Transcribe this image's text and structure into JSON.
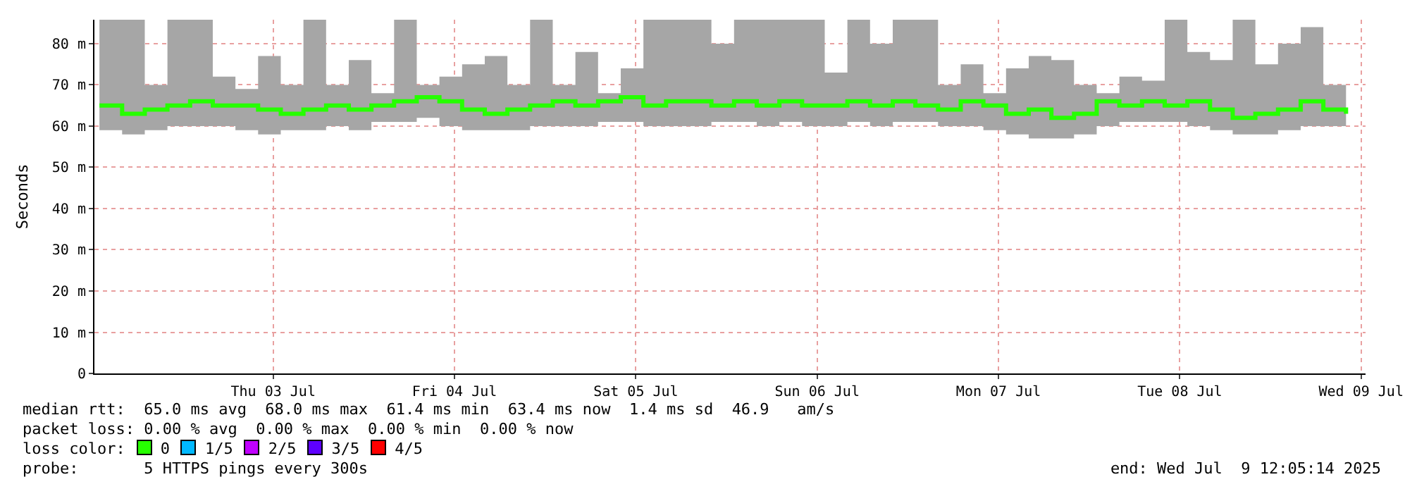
{
  "chart_data": {
    "type": "step",
    "ylabel": "Seconds",
    "x": [
      "2025-07-02T01:00",
      "2025-07-02T04:00",
      "2025-07-02T07:00",
      "2025-07-02T10:00",
      "2025-07-02T13:00",
      "2025-07-02T16:00",
      "2025-07-02T19:00",
      "2025-07-02T22:00",
      "2025-07-03T01:00",
      "2025-07-03T04:00",
      "2025-07-03T07:00",
      "2025-07-03T10:00",
      "2025-07-03T13:00",
      "2025-07-03T16:00",
      "2025-07-03T19:00",
      "2025-07-03T22:00",
      "2025-07-04T01:00",
      "2025-07-04T04:00",
      "2025-07-04T07:00",
      "2025-07-04T10:00",
      "2025-07-04T13:00",
      "2025-07-04T16:00",
      "2025-07-04T19:00",
      "2025-07-04T22:00",
      "2025-07-05T01:00",
      "2025-07-05T04:00",
      "2025-07-05T07:00",
      "2025-07-05T10:00",
      "2025-07-05T13:00",
      "2025-07-05T16:00",
      "2025-07-05T19:00",
      "2025-07-05T22:00",
      "2025-07-06T01:00",
      "2025-07-06T04:00",
      "2025-07-06T07:00",
      "2025-07-06T10:00",
      "2025-07-06T13:00",
      "2025-07-06T16:00",
      "2025-07-06T19:00",
      "2025-07-06T22:00",
      "2025-07-07T01:00",
      "2025-07-07T04:00",
      "2025-07-07T07:00",
      "2025-07-07T10:00",
      "2025-07-07T13:00",
      "2025-07-07T16:00",
      "2025-07-07T19:00",
      "2025-07-07T22:00",
      "2025-07-08T01:00",
      "2025-07-08T04:00",
      "2025-07-08T07:00",
      "2025-07-08T10:00",
      "2025-07-08T13:00",
      "2025-07-08T16:00",
      "2025-07-08T19:00",
      "2025-07-08T22:00"
    ],
    "series": [
      {
        "name": "0",
        "color": "#26ff00",
        "values": [
          65,
          63,
          64,
          65,
          66,
          65,
          65,
          64,
          63,
          64,
          65,
          64,
          65,
          66,
          67,
          66,
          64,
          63,
          64,
          65,
          66,
          65,
          66,
          67,
          65,
          66,
          66,
          65,
          66,
          65,
          66,
          65,
          65,
          66,
          65,
          66,
          65,
          64,
          66,
          65,
          63,
          64,
          62,
          63,
          66,
          65,
          66,
          65,
          66,
          64,
          62,
          63,
          64,
          66,
          64,
          63
        ],
        "lower": [
          59,
          58,
          59,
          60,
          60,
          60,
          59,
          58,
          59,
          59,
          60,
          59,
          61,
          61,
          62,
          60,
          59,
          59,
          59,
          60,
          60,
          60,
          61,
          61,
          60,
          60,
          60,
          61,
          61,
          60,
          61,
          60,
          60,
          61,
          60,
          61,
          61,
          60,
          60,
          59,
          58,
          57,
          57,
          58,
          60,
          61,
          61,
          61,
          60,
          59,
          58,
          58,
          59,
          60,
          60,
          59
        ],
        "upper": [
          85.8,
          85.8,
          70,
          85.8,
          85.8,
          72,
          69,
          77,
          70,
          85.8,
          70,
          76,
          68,
          85.8,
          70,
          72,
          75,
          77,
          70,
          85.8,
          70,
          78,
          68,
          74,
          85.8,
          85.8,
          85.8,
          80,
          85.8,
          85.8,
          85.8,
          85.8,
          73,
          85.8,
          80,
          85.8,
          85.8,
          70,
          75,
          68,
          74,
          77,
          76,
          70,
          68,
          72,
          71,
          85.8,
          78,
          76,
          85.8,
          75,
          80,
          84,
          70,
          71
        ]
      },
      {
        "name": "1/5",
        "color": "#00b8ff",
        "values": [
          null,
          null,
          null,
          null,
          null,
          null,
          null,
          null,
          null,
          null,
          null,
          null,
          null,
          null,
          null,
          null,
          null,
          null,
          null,
          null,
          null,
          null,
          null,
          null,
          null,
          null,
          null,
          null,
          null,
          null,
          null,
          null,
          null,
          null,
          null,
          null,
          null,
          null,
          null,
          null,
          null,
          null,
          null,
          null,
          null,
          null,
          null,
          null,
          null,
          null,
          null,
          null,
          null,
          null,
          null,
          null
        ]
      },
      {
        "name": "2/5",
        "color": "#c000ff",
        "values": [
          null,
          null,
          null,
          null,
          null,
          null,
          null,
          null,
          null,
          null,
          null,
          null,
          null,
          null,
          null,
          null,
          null,
          null,
          null,
          null,
          null,
          null,
          null,
          null,
          null,
          null,
          null,
          null,
          null,
          null,
          null,
          null,
          null,
          null,
          null,
          null,
          null,
          null,
          null,
          null,
          null,
          null,
          null,
          null,
          null,
          null,
          null,
          null,
          null,
          null,
          null,
          null,
          null,
          null,
          null,
          null
        ]
      },
      {
        "name": "3/5",
        "color": "#5e00ff",
        "values": [
          null,
          null,
          null,
          null,
          null,
          null,
          null,
          null,
          null,
          null,
          null,
          null,
          null,
          null,
          null,
          null,
          null,
          null,
          null,
          null,
          null,
          null,
          null,
          null,
          null,
          null,
          null,
          null,
          null,
          null,
          null,
          null,
          null,
          null,
          null,
          null,
          null,
          null,
          null,
          null,
          null,
          null,
          null,
          null,
          null,
          null,
          null,
          null,
          null,
          null,
          null,
          null,
          null,
          null,
          null,
          null
        ]
      },
      {
        "name": "4/5",
        "color": "#ff0000",
        "values": [
          null,
          null,
          null,
          null,
          null,
          null,
          null,
          null,
          null,
          null,
          null,
          null,
          null,
          null,
          null,
          null,
          null,
          null,
          null,
          null,
          null,
          null,
          null,
          null,
          null,
          null,
          null,
          null,
          null,
          null,
          null,
          null,
          null,
          null,
          null,
          null,
          null,
          null,
          null,
          null,
          null,
          null,
          null,
          null,
          null,
          null,
          null,
          null,
          null,
          null,
          null,
          null,
          null,
          null,
          null,
          null
        ]
      }
    ],
    "legend_title": "loss color:",
    "legend": "bottom left",
    "xlim": [
      "2025-07-02T00:20",
      "2025-07-09T00:35"
    ],
    "xticks": [
      {
        "value": "2025-07-03",
        "label": "Thu 03 Jul"
      },
      {
        "value": "2025-07-04",
        "label": "Fri 04 Jul"
      },
      {
        "value": "2025-07-05",
        "label": "Sat 05 Jul"
      },
      {
        "value": "2025-07-06",
        "label": "Sun 06 Jul"
      },
      {
        "value": "2025-07-07",
        "label": "Mon 07 Jul"
      },
      {
        "value": "2025-07-08",
        "label": "Tue 08 Jul"
      },
      {
        "value": "2025-07-09",
        "label": "Wed 09 Jul"
      }
    ],
    "ylim": [
      0,
      85.8
    ],
    "yticks": [
      0,
      {
        "value": 10,
        "label": "10 m"
      },
      {
        "value": 20,
        "label": "20 m"
      },
      {
        "value": 30,
        "label": "30 m"
      },
      {
        "value": 40,
        "label": "40 m"
      },
      {
        "value": 50,
        "label": "50 m"
      },
      {
        "value": 60,
        "label": "60 m"
      },
      {
        "value": 70,
        "label": "70 m"
      },
      {
        "value": 80,
        "label": "80 m"
      }
    ],
    "grid": true,
    "annotations": [
      "median rtt:  65.0 ms avg  68.0 ms max  61.4 ms min  63.4 ms now  1.4 ms sd  46.9   am/s",
      "packet loss: 0.00 % avg  0.00 % max  0.00 % min  0.00 % now",
      "probe:       5 HTTPS pings every 300s",
      "end: Wed Jul  9 12:05:14 2025"
    ]
  }
}
